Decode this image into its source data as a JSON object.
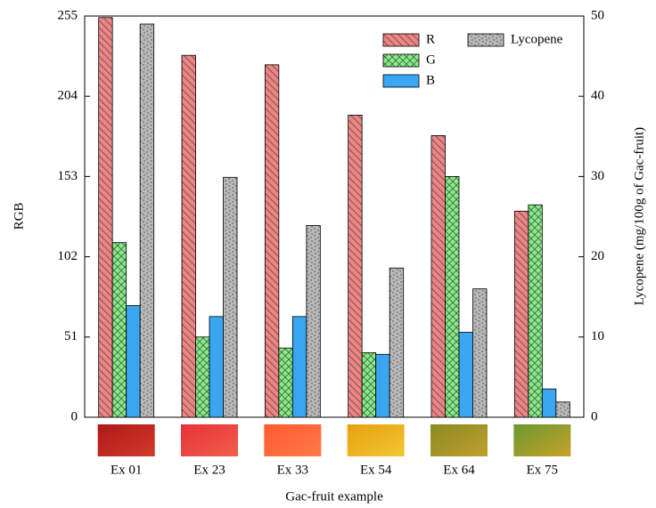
{
  "chart_data": {
    "type": "bar",
    "x_label": "Gac-fruit example",
    "y_label": "RGB",
    "y2_label": "Lycopene (mg/100g of Gac-fruit)",
    "categories": [
      "Ex 01",
      "Ex 23",
      "Ex 33",
      "Ex 54",
      "Ex 64",
      "Ex 75"
    ],
    "series": [
      {
        "name": "R",
        "color": "#f08282",
        "values": [
          254,
          230,
          224,
          192,
          179,
          131
        ]
      },
      {
        "name": "G",
        "color": "#80f080",
        "values": [
          111,
          51,
          44,
          41,
          153,
          135
        ]
      },
      {
        "name": "B",
        "color": "#3aa6f2",
        "values": [
          71,
          64,
          64,
          40,
          54,
          18
        ]
      },
      {
        "name": "Lycopene",
        "color": "#b8b8b8",
        "axis": "y2",
        "values": [
          49.0,
          29.9,
          23.9,
          18.6,
          16.0,
          1.9
        ]
      }
    ],
    "ylim": [
      0,
      255
    ],
    "yticks": [
      0,
      51,
      102,
      153,
      204,
      255
    ],
    "y2lim": [
      0,
      50
    ],
    "y2ticks": [
      0,
      10,
      20,
      30,
      40,
      50
    ],
    "legend": "upper right"
  }
}
